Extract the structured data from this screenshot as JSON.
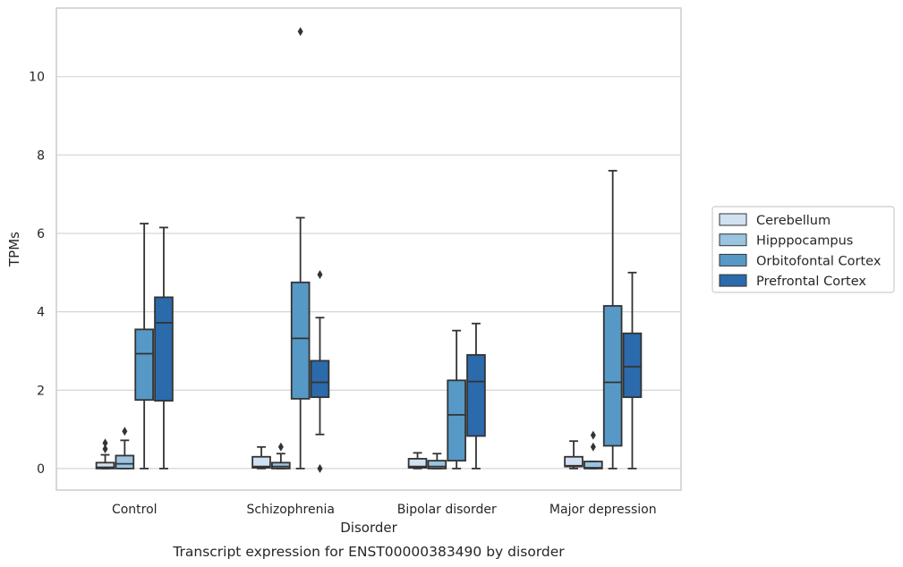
{
  "chart_data": {
    "type": "box",
    "caption": "Transcript expression for ENST00000383490 by disorder",
    "xlabel": "Disorder",
    "ylabel": "TPMs",
    "ylim": [
      -0.55,
      11.75
    ],
    "yticks": [
      0,
      2,
      4,
      6,
      8,
      10
    ],
    "grid": "horizontal",
    "legend_position": "right",
    "categories": [
      "Control",
      "Schizophrenia",
      "Bipolar disorder",
      "Major depression"
    ],
    "series": [
      {
        "name": "Cerebellum",
        "color": "#d0e1f1",
        "boxes": [
          {
            "whisker_low": 0.0,
            "q1": 0.0,
            "median": 0.03,
            "q3": 0.15,
            "whisker_high": 0.35,
            "outliers": [
              0.5,
              0.65
            ]
          },
          {
            "whisker_low": 0.0,
            "q1": 0.02,
            "median": 0.05,
            "q3": 0.3,
            "whisker_high": 0.55,
            "outliers": []
          },
          {
            "whisker_low": 0.0,
            "q1": 0.02,
            "median": 0.05,
            "q3": 0.25,
            "whisker_high": 0.4,
            "outliers": []
          },
          {
            "whisker_low": 0.0,
            "q1": 0.05,
            "median": 0.07,
            "q3": 0.3,
            "whisker_high": 0.7,
            "outliers": []
          }
        ]
      },
      {
        "name": "Hipppocampus",
        "color": "#9ac4e0",
        "boxes": [
          {
            "whisker_low": 0.0,
            "q1": 0.0,
            "median": 0.12,
            "q3": 0.33,
            "whisker_high": 0.72,
            "outliers": [
              0.95
            ]
          },
          {
            "whisker_low": 0.0,
            "q1": 0.0,
            "median": 0.05,
            "q3": 0.15,
            "whisker_high": 0.38,
            "outliers": [
              0.55
            ]
          },
          {
            "whisker_low": 0.0,
            "q1": 0.0,
            "median": 0.05,
            "q3": 0.2,
            "whisker_high": 0.38,
            "outliers": []
          },
          {
            "whisker_low": 0.0,
            "q1": 0.0,
            "median": 0.02,
            "q3": 0.18,
            "whisker_high": 0.18,
            "outliers": [
              0.55,
              0.85
            ]
          }
        ]
      },
      {
        "name": "Orbitofontal Cortex",
        "color": "#5699c6",
        "boxes": [
          {
            "whisker_low": 0.0,
            "q1": 1.75,
            "median": 2.93,
            "q3": 3.55,
            "whisker_high": 6.25,
            "outliers": []
          },
          {
            "whisker_low": 0.0,
            "q1": 1.78,
            "median": 3.32,
            "q3": 4.75,
            "whisker_high": 6.4,
            "outliers": [
              11.15
            ]
          },
          {
            "whisker_low": 0.0,
            "q1": 0.2,
            "median": 1.37,
            "q3": 2.25,
            "whisker_high": 3.52,
            "outliers": []
          },
          {
            "whisker_low": 0.0,
            "q1": 0.58,
            "median": 2.2,
            "q3": 4.15,
            "whisker_high": 7.6,
            "outliers": []
          }
        ]
      },
      {
        "name": "Prefrontal Cortex",
        "color": "#2b6aab",
        "boxes": [
          {
            "whisker_low": 0.0,
            "q1": 1.73,
            "median": 3.72,
            "q3": 4.37,
            "whisker_high": 6.15,
            "outliers": []
          },
          {
            "whisker_low": 0.87,
            "q1": 1.82,
            "median": 2.2,
            "q3": 2.75,
            "whisker_high": 3.85,
            "outliers": [
              0.0,
              4.95
            ]
          },
          {
            "whisker_low": 0.0,
            "q1": 0.83,
            "median": 2.22,
            "q3": 2.9,
            "whisker_high": 3.7,
            "outliers": []
          },
          {
            "whisker_low": 0.0,
            "q1": 1.82,
            "median": 2.6,
            "q3": 3.45,
            "whisker_high": 5.0,
            "outliers": []
          }
        ]
      }
    ]
  }
}
